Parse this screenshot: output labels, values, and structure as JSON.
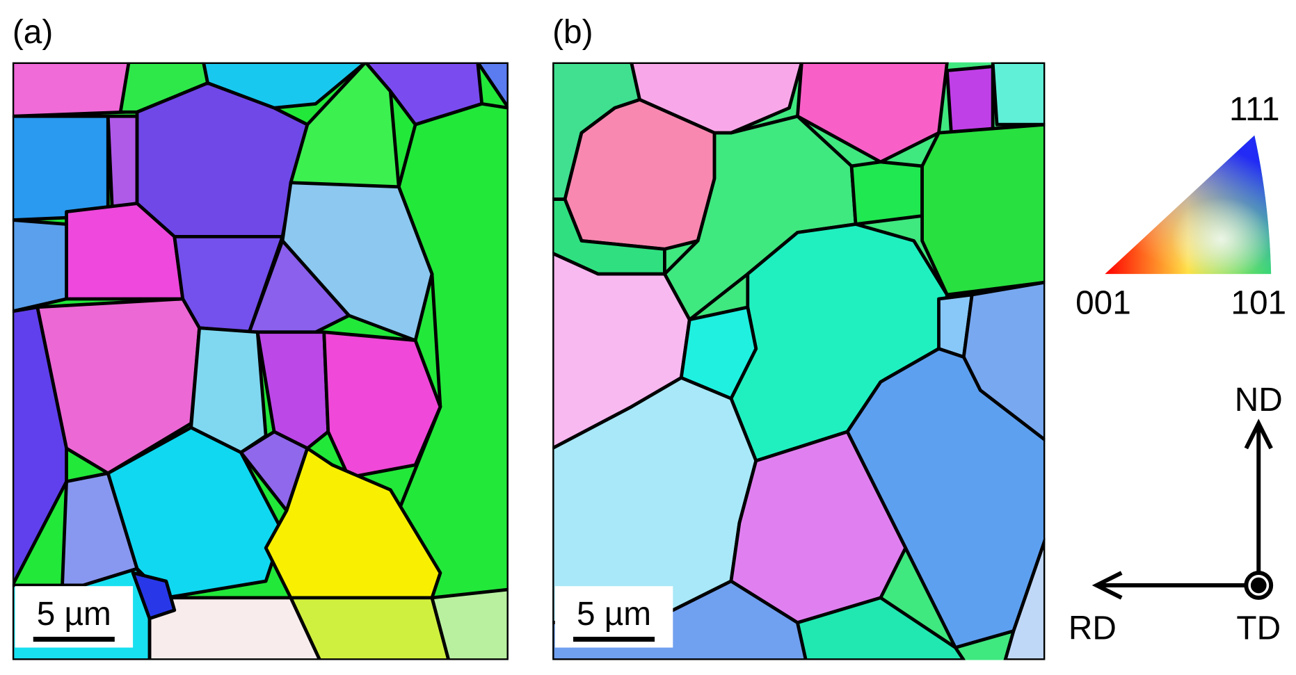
{
  "panels": [
    {
      "label": "(a)",
      "scale_bar": "5 µm"
    },
    {
      "label": "(b)",
      "scale_bar": "5 µm"
    }
  ],
  "ipf_key": {
    "corners": [
      "111",
      "001",
      "101"
    ]
  },
  "axes": {
    "normal": "ND",
    "rolling": "RD",
    "transverse": "TD"
  }
}
